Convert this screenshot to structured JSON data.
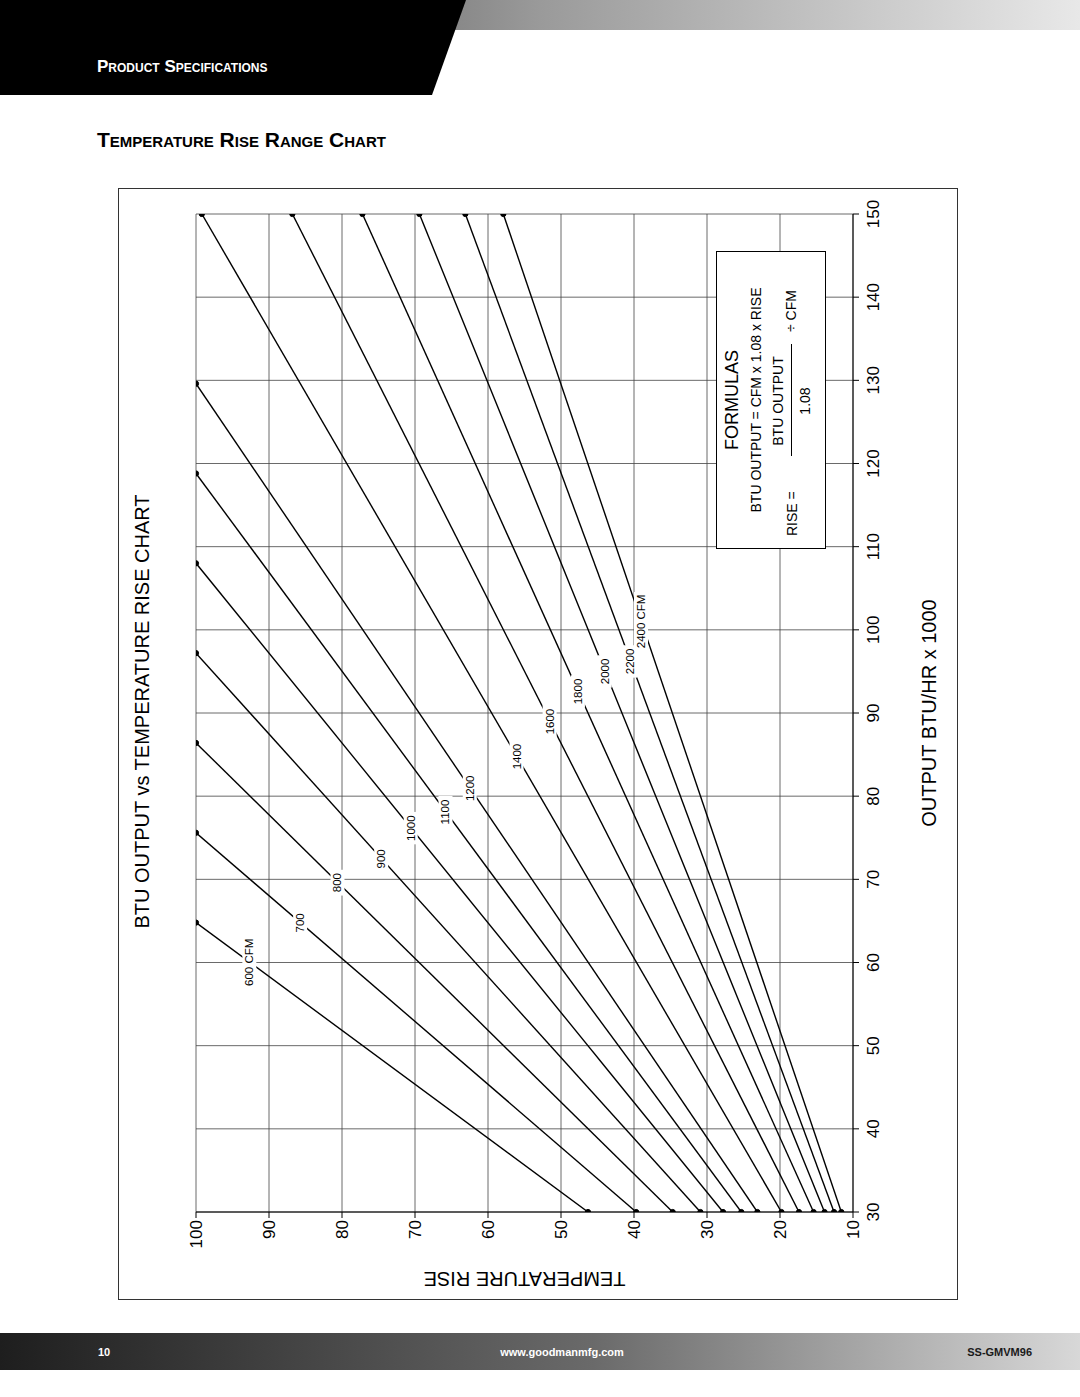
{
  "header": {
    "section": "Product Specifications",
    "title": "Temperature Rise Range Chart"
  },
  "chart_data": {
    "type": "line",
    "title": "BTU OUTPUT vs TEMPERATURE RISE CHART",
    "x_label": "OUTPUT BTU/HR x 1000",
    "y_label": "TEMPERATURE RISE",
    "xlim": [
      30,
      150
    ],
    "xticks": [
      30,
      40,
      50,
      60,
      70,
      80,
      90,
      100,
      110,
      120,
      130,
      140,
      150
    ],
    "ylim": [
      10,
      100
    ],
    "yticks": [
      10,
      20,
      30,
      40,
      50,
      60,
      70,
      80,
      90,
      100
    ],
    "grid": true,
    "color": "#000000",
    "marker": "circle",
    "series": [
      {
        "name": "600 CFM",
        "x": [
          30,
          64.8
        ],
        "values": [
          46.3,
          100
        ]
      },
      {
        "name": "700",
        "x": [
          30,
          75.6
        ],
        "values": [
          39.7,
          100
        ]
      },
      {
        "name": "800",
        "x": [
          30,
          86.4
        ],
        "values": [
          34.7,
          100
        ]
      },
      {
        "name": "900",
        "x": [
          30,
          97.2
        ],
        "values": [
          30.9,
          100
        ]
      },
      {
        "name": "1000",
        "x": [
          30,
          108.0
        ],
        "values": [
          27.8,
          100
        ]
      },
      {
        "name": "1100",
        "x": [
          30,
          118.8
        ],
        "values": [
          25.3,
          100
        ]
      },
      {
        "name": "1200",
        "x": [
          30,
          129.6
        ],
        "values": [
          23.1,
          100
        ]
      },
      {
        "name": "1400",
        "x": [
          30,
          150
        ],
        "values": [
          19.8,
          99.2
        ]
      },
      {
        "name": "1600",
        "x": [
          30,
          150
        ],
        "values": [
          17.4,
          86.8
        ]
      },
      {
        "name": "1800",
        "x": [
          30,
          150
        ],
        "values": [
          15.4,
          77.2
        ]
      },
      {
        "name": "2000",
        "x": [
          30,
          150
        ],
        "values": [
          13.9,
          69.4
        ]
      },
      {
        "name": "2200",
        "x": [
          30,
          150
        ],
        "values": [
          12.6,
          63.1
        ]
      },
      {
        "name": "2400 CFM",
        "x": [
          30,
          150
        ],
        "values": [
          11.6,
          57.9
        ]
      }
    ]
  },
  "formulas": {
    "title": "FORMULAS",
    "equation": "BTU OUTPUT = CFM x 1.08 x RISE",
    "rise_label": "RISE =",
    "numerator": "BTU OUTPUT",
    "denominator": "1.08",
    "divisor": "÷ CFM"
  },
  "footer": {
    "page": 10,
    "url": "www.goodmanmfg.com",
    "doc": "SS-GMVM96"
  }
}
